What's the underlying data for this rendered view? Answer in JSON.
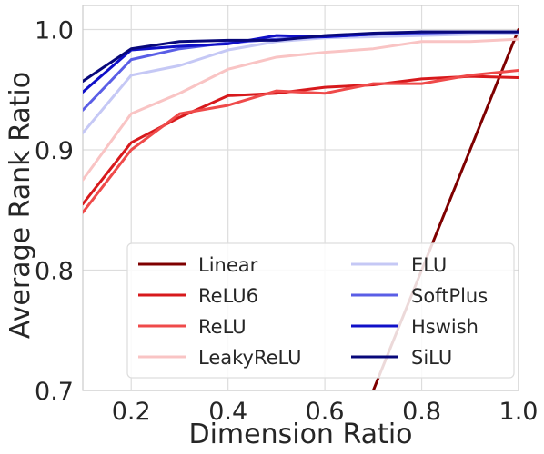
{
  "chart_data": {
    "type": "line",
    "title": "",
    "xlabel": "Dimension Ratio",
    "ylabel": "Average Rank Ratio",
    "xlim": [
      0.1,
      1.0
    ],
    "ylim": [
      0.7,
      1.02
    ],
    "xticks": [
      0.2,
      0.4,
      0.6,
      0.8,
      1.0
    ],
    "xtick_labels": [
      "0.2",
      "0.4",
      "0.6",
      "0.8",
      "1.0"
    ],
    "yticks": [
      0.7,
      0.8,
      0.9,
      1.0
    ],
    "ytick_labels": [
      "0.7",
      "0.8",
      "0.9",
      "1.0"
    ],
    "grid": true,
    "legend": {
      "placement": "bottom-center",
      "columns": 2
    },
    "x": [
      0.1,
      0.2,
      0.3,
      0.4,
      0.5,
      0.6,
      0.7,
      0.8,
      0.9,
      1.0
    ],
    "series": [
      {
        "name": "Linear",
        "color": "#7f0000",
        "x": [
          0.7,
          1.0
        ],
        "values": [
          0.7,
          1.0
        ]
      },
      {
        "name": "ReLU6",
        "color": "#d7191c",
        "values": [
          0.855,
          0.906,
          0.927,
          0.945,
          0.947,
          0.952,
          0.954,
          0.959,
          0.961,
          0.96
        ]
      },
      {
        "name": "ReLU",
        "color": "#ef4a4a",
        "values": [
          0.848,
          0.9,
          0.93,
          0.937,
          0.949,
          0.947,
          0.955,
          0.955,
          0.962,
          0.966
        ]
      },
      {
        "name": "LeakyReLU",
        "color": "#f9c4c4",
        "values": [
          0.875,
          0.93,
          0.947,
          0.967,
          0.977,
          0.981,
          0.984,
          0.99,
          0.99,
          0.992
        ]
      },
      {
        "name": "ELU",
        "color": "#c5c8f5",
        "values": [
          0.914,
          0.962,
          0.97,
          0.983,
          0.99,
          0.993,
          0.994,
          0.995,
          0.996,
          0.997
        ]
      },
      {
        "name": "SoftPlus",
        "color": "#5a5ee6",
        "values": [
          0.933,
          0.975,
          0.984,
          0.989,
          0.992,
          0.994,
          0.996,
          0.997,
          0.998,
          0.998
        ]
      },
      {
        "name": "Hswish",
        "color": "#1010c8",
        "values": [
          0.948,
          0.983,
          0.986,
          0.988,
          0.995,
          0.994,
          0.996,
          0.998,
          0.998,
          0.998
        ]
      },
      {
        "name": "SiLU",
        "color": "#08087a",
        "values": [
          0.957,
          0.984,
          0.99,
          0.991,
          0.991,
          0.995,
          0.997,
          0.998,
          0.998,
          0.998
        ]
      }
    ]
  }
}
